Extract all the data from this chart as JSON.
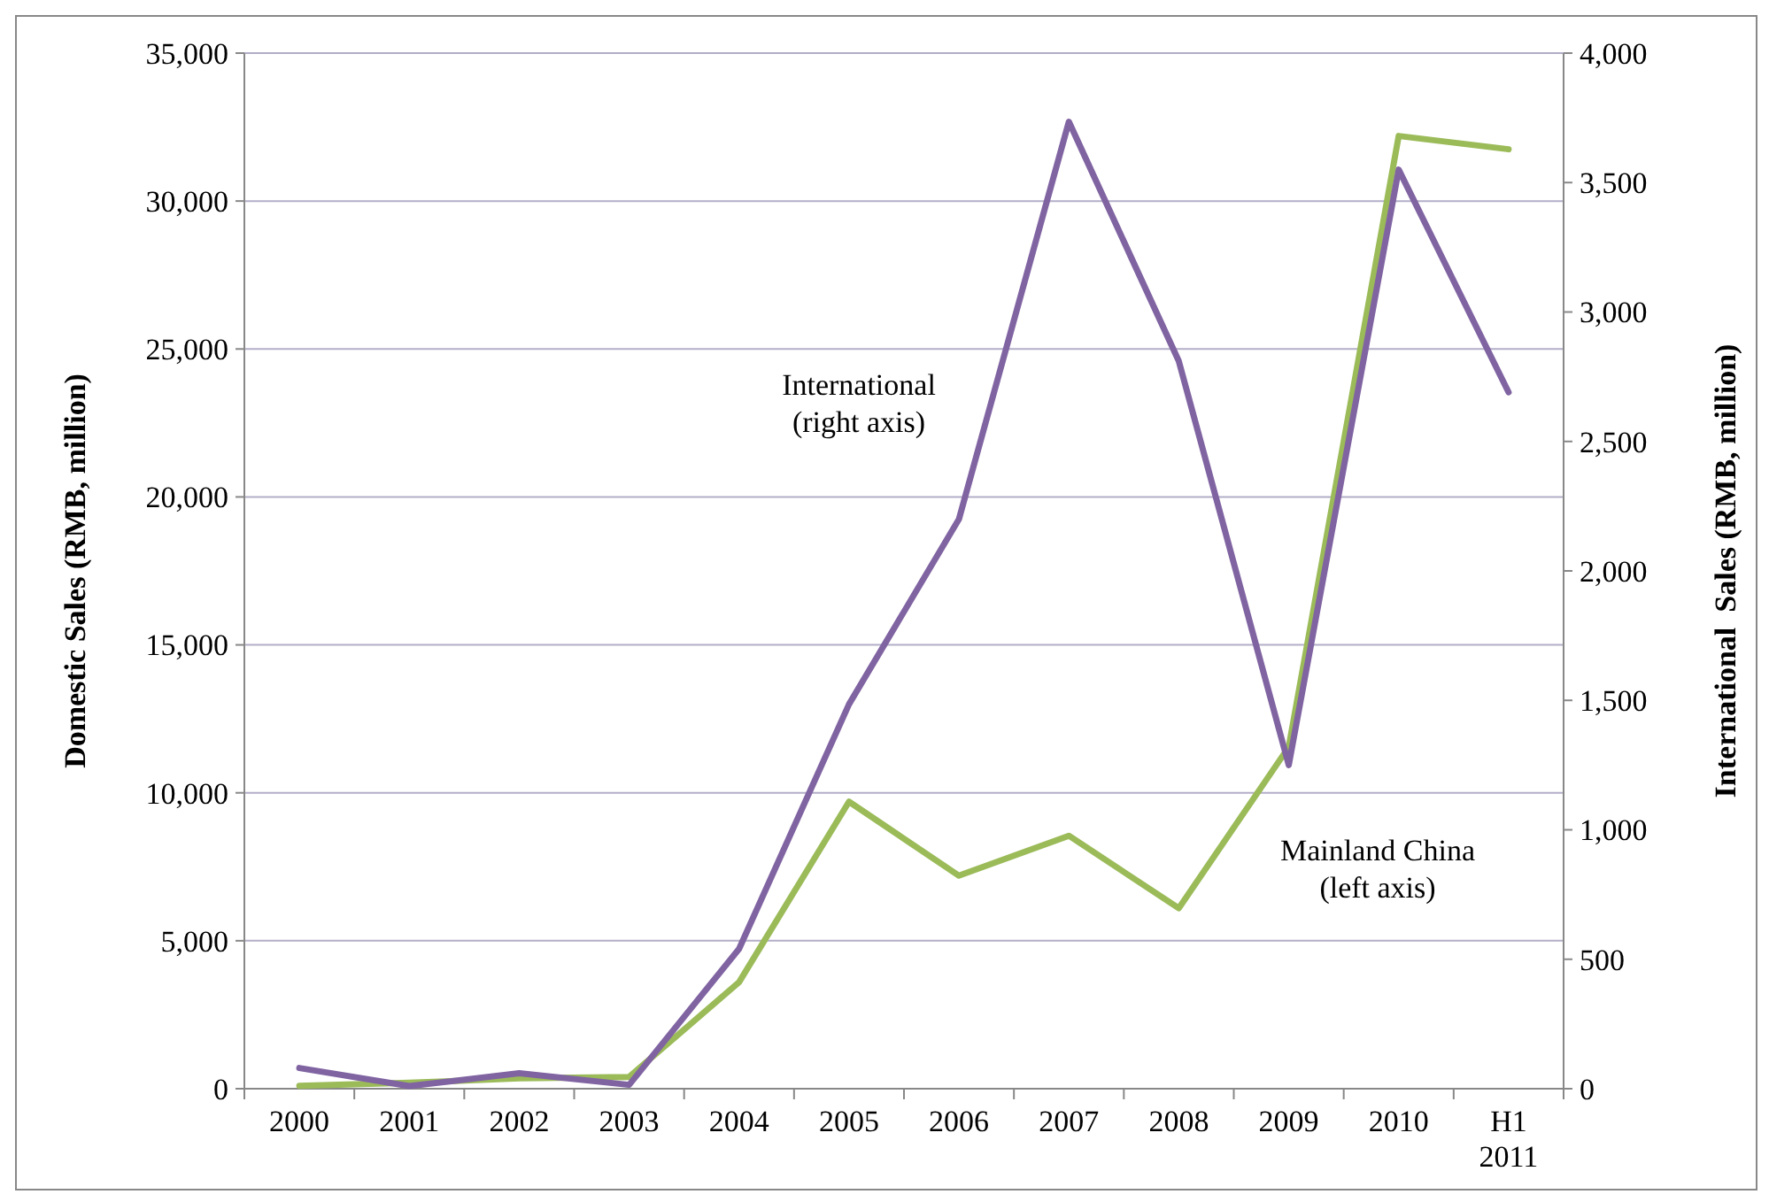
{
  "chart_data": {
    "type": "line",
    "ylabel": "Domestic Sales (RMB, million)",
    "y2label": "International  Sales (RMB, million)",
    "categories": [
      "2000",
      "2001",
      "2002",
      "2003",
      "2004",
      "2005",
      "2006",
      "2007",
      "2008",
      "2009",
      "2010",
      "H1 2011"
    ],
    "series": [
      {
        "name": "Mainland China",
        "color": "#9bbb59",
        "values": [
          100,
          200,
          350,
          400,
          3600,
          9700,
          7200,
          8550,
          6100,
          11550,
          32200,
          31750
        ]
      },
      {
        "name": "International",
        "color": "#8064a2",
        "axis": "y2",
        "values": [
          80,
          10,
          60,
          15,
          540,
          1485,
          2200,
          3735,
          2810,
          1250,
          3550,
          2690
        ]
      }
    ],
    "ylim": [
      0,
      35000
    ],
    "yticks": [
      {
        "value": 0,
        "label": "0"
      },
      {
        "value": 5000,
        "label": "5,000"
      },
      {
        "value": 10000,
        "label": "10,000"
      },
      {
        "value": 15000,
        "label": "15,000"
      },
      {
        "value": 20000,
        "label": "20,000"
      },
      {
        "value": 25000,
        "label": "25,000"
      },
      {
        "value": 30000,
        "label": "30,000"
      },
      {
        "value": 35000,
        "label": "35,000"
      }
    ],
    "y2lim": [
      0,
      4000
    ],
    "y2ticks": [
      {
        "value": 0,
        "label": "0"
      },
      {
        "value": 500,
        "label": "500"
      },
      {
        "value": 1000,
        "label": "1,000"
      },
      {
        "value": 1500,
        "label": "1,500"
      },
      {
        "value": 2000,
        "label": "2,000"
      },
      {
        "value": 2500,
        "label": "2,500"
      },
      {
        "value": 3000,
        "label": "3,000"
      },
      {
        "value": 3500,
        "label": "3,500"
      },
      {
        "value": 4000,
        "label": "4,000"
      }
    ],
    "annotations": [
      "(left axis)",
      "(right axis)"
    ],
    "grid": "y",
    "marker": "none",
    "line_style": "solid"
  }
}
